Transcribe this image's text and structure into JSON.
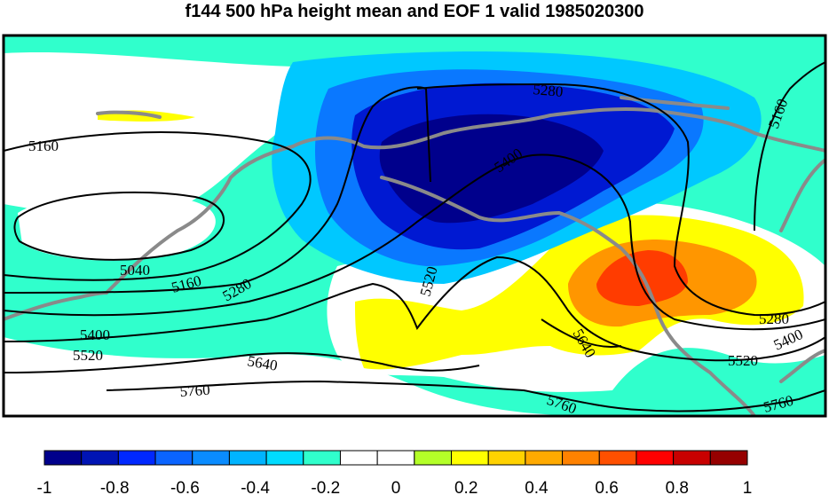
{
  "title": "f144 500 hPa height mean and EOF 1 valid 1985020300",
  "colors": {
    "ocean_default": "#ffffff",
    "coast": "#8a8a8a",
    "contour": "#000000"
  },
  "shading": [
    {
      "level": -0.9,
      "color": "#00008c"
    },
    {
      "level": -0.7,
      "color": "#0019d2"
    },
    {
      "level": -0.5,
      "color": "#0a78ff"
    },
    {
      "level": -0.3,
      "color": "#00c8ff"
    },
    {
      "level": -0.1,
      "color": "#30ffcc"
    },
    {
      "level": 0.2,
      "color": "#ffff00"
    },
    {
      "level": 0.5,
      "color": "#ff9600"
    },
    {
      "level": 0.7,
      "color": "#ff3c00"
    }
  ],
  "contour_labels": [
    "5040",
    "5160",
    "5280",
    "5400",
    "5520",
    "5640",
    "5760"
  ],
  "colorbar": {
    "colors": [
      "#00008c",
      "#0014b4",
      "#0028ff",
      "#0a64ff",
      "#0a8cff",
      "#00b4ff",
      "#00dcff",
      "#30ffcc",
      "#ffffff",
      "#ffffff",
      "#b4ff28",
      "#ffff00",
      "#ffd200",
      "#ffaa00",
      "#ff8200",
      "#ff5000",
      "#ff0000",
      "#c80000",
      "#960000"
    ],
    "tick_labels": [
      "-1",
      "-0.8",
      "-0.6",
      "-0.4",
      "-0.2",
      "0",
      "0.2",
      "0.4",
      "0.6",
      "0.8",
      "1"
    ]
  }
}
